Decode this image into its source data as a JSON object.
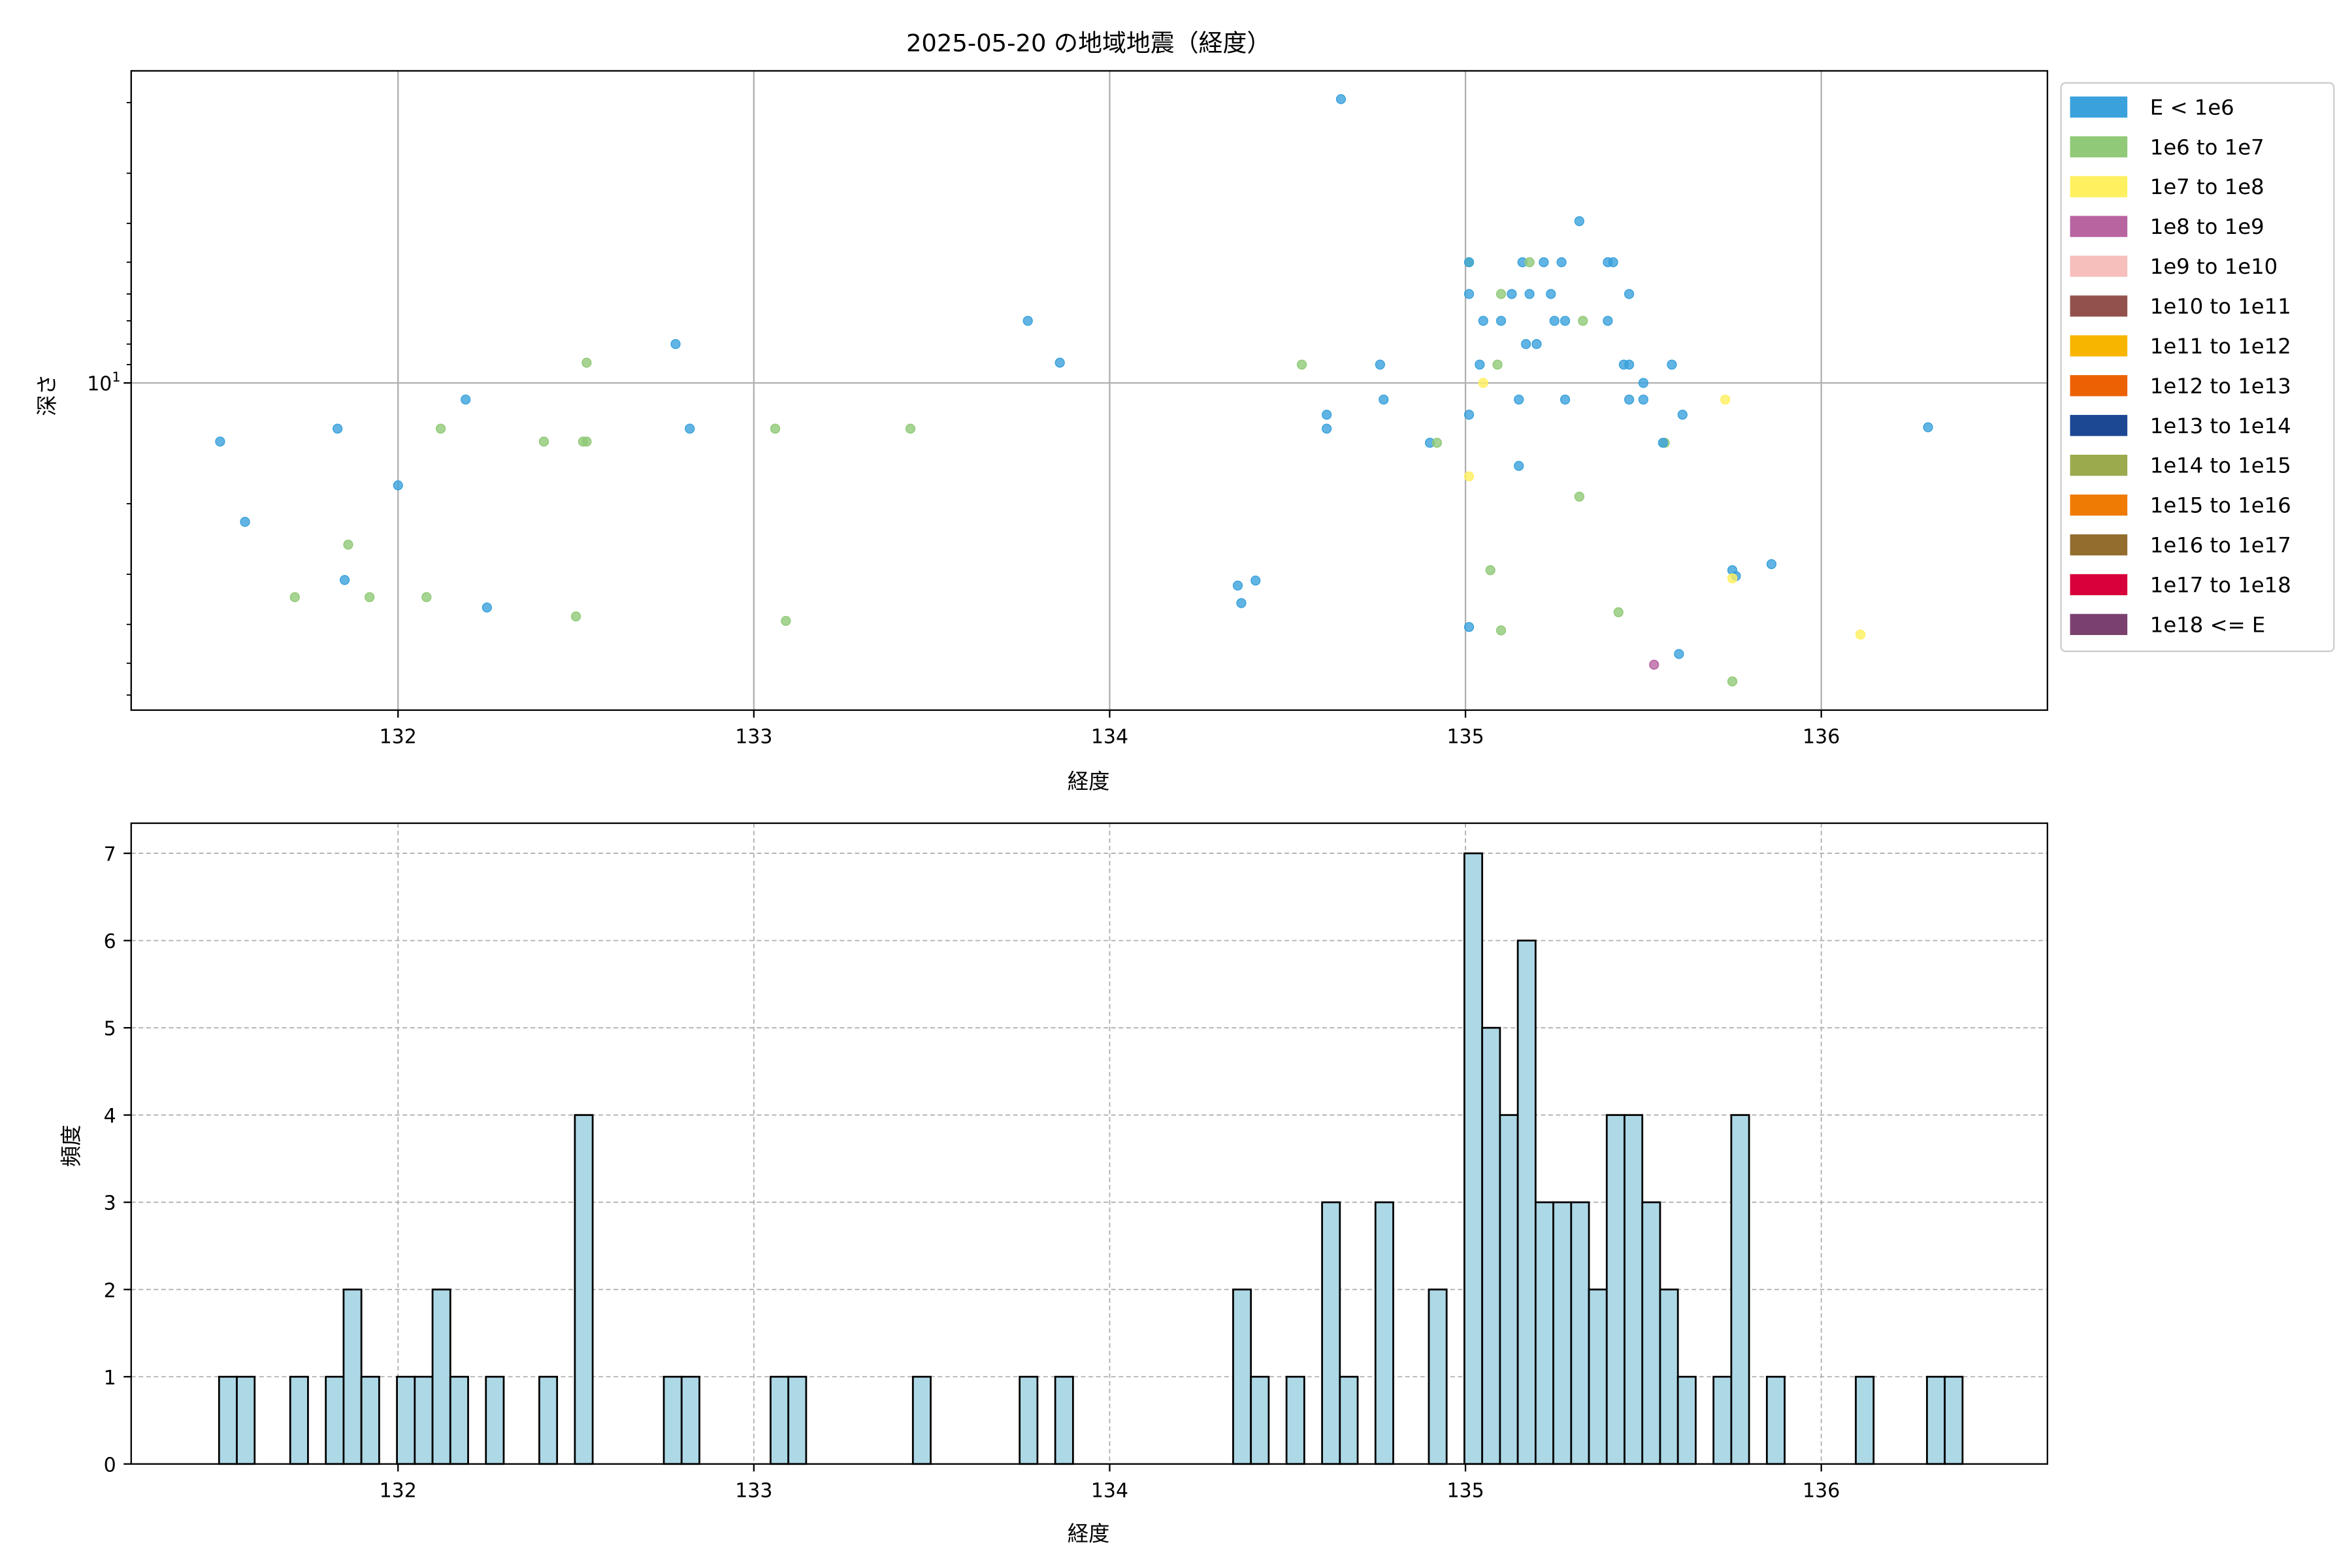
{
  "chart_data": [
    {
      "type": "scatter",
      "title": "2025-05-20 の地域地震（経度）",
      "xlabel": "経度",
      "ylabel": "深さ",
      "xlim": [
        131.25,
        136.64
      ],
      "ylim": [
        65.5,
        1.67
      ],
      "yscale": "log",
      "y_inverted": true,
      "grid": true,
      "xticks": [
        132,
        133,
        134,
        135,
        136
      ],
      "xtick_labels": [
        "132",
        "133",
        "134",
        "135",
        "136"
      ],
      "yticks": [
        10
      ],
      "ytick_labels": [
        "10^1"
      ],
      "yminor_ticks": [
        2,
        3,
        4,
        5,
        6,
        7,
        8,
        9,
        20,
        30,
        40,
        50,
        60
      ],
      "legend_position": "outside-right",
      "legend": [
        {
          "label": "E < 1e6",
          "color": "#3aa1dc"
        },
        {
          "label": "1e6 to 1e7",
          "color": "#90c977"
        },
        {
          "label": "1e7 to 1e8",
          "color": "#fff05f"
        },
        {
          "label": "1e8 to 1e9",
          "color": "#b864a1"
        },
        {
          "label": "1e9 to 1e10",
          "color": "#f6bfbc"
        },
        {
          "label": "1e10 to 1e11",
          "color": "#93514d"
        },
        {
          "label": "1e11 to 1e12",
          "color": "#f8b500"
        },
        {
          "label": "1e12 to 1e13",
          "color": "#ec6104"
        },
        {
          "label": "1e13 to 1e14",
          "color": "#1b4793"
        },
        {
          "label": "1e14 to 1e15",
          "color": "#9baa4d"
        },
        {
          "label": "1e15 to 1e16",
          "color": "#ef7b04"
        },
        {
          "label": "1e16 to 1e17",
          "color": "#936d2e"
        },
        {
          "label": "1e17 to 1e18",
          "color": "#d7003a"
        },
        {
          "label": "1e18 <= E",
          "color": "#7b416e"
        }
      ],
      "point_fields": [
        "longitude",
        "depth",
        "energy_class"
      ],
      "points": [
        [
          131.5,
          14.0,
          0
        ],
        [
          131.57,
          22.2,
          0
        ],
        [
          131.71,
          34.2,
          1
        ],
        [
          131.83,
          13.0,
          0
        ],
        [
          131.85,
          31.0,
          0
        ],
        [
          131.86,
          25.3,
          1
        ],
        [
          131.92,
          34.2,
          1
        ],
        [
          132.0,
          18.0,
          0
        ],
        [
          132.08,
          34.2,
          1
        ],
        [
          132.12,
          13.0,
          1
        ],
        [
          132.19,
          11.0,
          0
        ],
        [
          132.25,
          36.3,
          0
        ],
        [
          132.41,
          14.0,
          1
        ],
        [
          132.5,
          38.2,
          1
        ],
        [
          132.52,
          14.0,
          1
        ],
        [
          132.53,
          14.0,
          1
        ],
        [
          132.53,
          8.9,
          1
        ],
        [
          132.78,
          8.0,
          0
        ],
        [
          132.82,
          13.0,
          0
        ],
        [
          133.06,
          13.0,
          1
        ],
        [
          133.09,
          39.2,
          1
        ],
        [
          133.44,
          13.0,
          1
        ],
        [
          133.77,
          7.0,
          0
        ],
        [
          133.86,
          8.9,
          0
        ],
        [
          134.36,
          32.0,
          0
        ],
        [
          134.37,
          35.4,
          0
        ],
        [
          134.41,
          31.1,
          0
        ],
        [
          134.65,
          1.96,
          0
        ],
        [
          135.32,
          3.95,
          0
        ],
        [
          135.01,
          5.0,
          1
        ],
        [
          135.01,
          5.0,
          0
        ],
        [
          135.16,
          5.0,
          0
        ],
        [
          135.18,
          5.0,
          1
        ],
        [
          135.22,
          5.0,
          0
        ],
        [
          135.27,
          5.0,
          0
        ],
        [
          135.4,
          5.0,
          0
        ],
        [
          135.415,
          5.0,
          0
        ],
        [
          135.01,
          6.0,
          0
        ],
        [
          135.1,
          6.0,
          1
        ],
        [
          135.13,
          6.0,
          0
        ],
        [
          135.18,
          6.0,
          0
        ],
        [
          135.24,
          6.0,
          0
        ],
        [
          135.46,
          6.0,
          0
        ],
        [
          135.05,
          7.0,
          0
        ],
        [
          135.1,
          7.0,
          0
        ],
        [
          135.25,
          7.0,
          0
        ],
        [
          135.28,
          7.0,
          0
        ],
        [
          135.33,
          7.0,
          1
        ],
        [
          135.4,
          7.0,
          0
        ],
        [
          135.17,
          8.0,
          0
        ],
        [
          135.2,
          8.0,
          0
        ],
        [
          134.54,
          9.0,
          1
        ],
        [
          134.76,
          9.0,
          0
        ],
        [
          135.04,
          9.0,
          0
        ],
        [
          135.09,
          9.0,
          1
        ],
        [
          135.445,
          9.0,
          0
        ],
        [
          135.46,
          9.0,
          0
        ],
        [
          135.58,
          9.0,
          0
        ],
        [
          135.05,
          10.0,
          2
        ],
        [
          135.5,
          10.0,
          0
        ],
        [
          134.77,
          11.0,
          0
        ],
        [
          135.15,
          11.0,
          0
        ],
        [
          135.28,
          11.0,
          0
        ],
        [
          135.46,
          11.0,
          0
        ],
        [
          135.5,
          11.0,
          0
        ],
        [
          135.73,
          11.0,
          2
        ],
        [
          134.61,
          12.0,
          0
        ],
        [
          135.01,
          12.0,
          0
        ],
        [
          135.61,
          12.0,
          0
        ],
        [
          134.61,
          13.0,
          0
        ],
        [
          134.9,
          14.1,
          0
        ],
        [
          134.92,
          14.1,
          1
        ],
        [
          135.56,
          14.1,
          1
        ],
        [
          135.555,
          14.1,
          0
        ],
        [
          135.15,
          16.1,
          0
        ],
        [
          135.01,
          17.1,
          2
        ],
        [
          135.32,
          19.2,
          1
        ],
        [
          135.01,
          40.6,
          0
        ],
        [
          135.07,
          29.3,
          1
        ],
        [
          135.1,
          41.4,
          1
        ],
        [
          135.43,
          37.3,
          1
        ],
        [
          135.53,
          50.4,
          3
        ],
        [
          135.6,
          47.4,
          0
        ],
        [
          135.75,
          55.5,
          1
        ],
        [
          135.75,
          29.3,
          0
        ],
        [
          135.76,
          30.3,
          0
        ],
        [
          135.75,
          30.7,
          2
        ],
        [
          135.86,
          28.3,
          0
        ],
        [
          136.11,
          42.4,
          2
        ],
        [
          136.3,
          12.9,
          0
        ]
      ]
    },
    {
      "type": "bar",
      "subtype": "histogram",
      "xlabel": "経度",
      "ylabel": "頻度",
      "xlim": [
        131.25,
        136.64
      ],
      "ylim": [
        0,
        7.35
      ],
      "grid": true,
      "grid_style": "dashed",
      "bar_color": "#add8e6",
      "edge_color": "#000000",
      "xticks": [
        132,
        133,
        134,
        135,
        136
      ],
      "xtick_labels": [
        "132",
        "133",
        "134",
        "135",
        "136"
      ],
      "yticks": [
        0,
        1,
        2,
        3,
        4,
        5,
        6,
        7
      ],
      "ytick_labels": [
        "0",
        "1",
        "2",
        "3",
        "4",
        "5",
        "6",
        "7"
      ],
      "bin_start": 131.497,
      "bin_width": 0.05,
      "counts": [
        1,
        1,
        0,
        0,
        1,
        0,
        1,
        2,
        1,
        0,
        1,
        1,
        2,
        1,
        0,
        1,
        0,
        0,
        1,
        0,
        4,
        0,
        0,
        0,
        0,
        1,
        1,
        0,
        0,
        0,
        0,
        1,
        1,
        0,
        0,
        0,
        0,
        0,
        0,
        1,
        0,
        0,
        0,
        0,
        0,
        1,
        0,
        1,
        0,
        0,
        0,
        0,
        0,
        0,
        0,
        0,
        0,
        2,
        1,
        0,
        1,
        0,
        3,
        1,
        0,
        3,
        0,
        0,
        2,
        0,
        7,
        5,
        4,
        6,
        3,
        3,
        3,
        2,
        4,
        4,
        3,
        2,
        1,
        0,
        1,
        4,
        0,
        1,
        0,
        0,
        0,
        0,
        1,
        0,
        0,
        0,
        1,
        1
      ]
    }
  ]
}
